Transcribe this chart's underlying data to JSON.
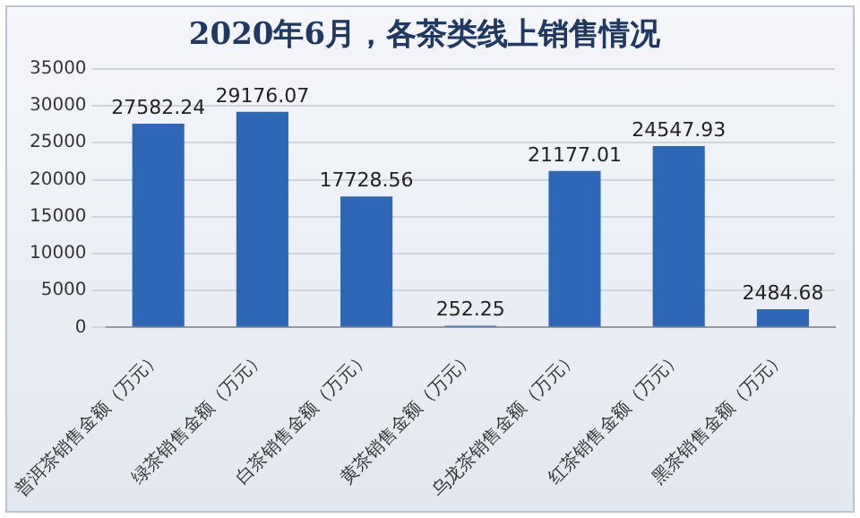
{
  "chart_data": {
    "type": "bar",
    "title": "2020年6月，各茶类线上销售情况",
    "categories": [
      "普洱茶销售金额（万元）",
      "绿茶销售金额（万元）",
      "白茶销售金额（万元）",
      "黄茶销售金额（万元）",
      "乌龙茶销售金额（万元）",
      "红茶销售金额（万元）",
      "黑茶销售金额（万元）"
    ],
    "values": [
      27582.24,
      29176.07,
      17728.56,
      252.25,
      21177.01,
      24547.93,
      2484.68
    ],
    "color": "#2e67b5",
    "ylim": [
      0,
      35000
    ],
    "yticks": [
      0,
      5000,
      10000,
      15000,
      20000,
      25000,
      30000,
      35000
    ],
    "grid": "y",
    "data_labels": true
  }
}
